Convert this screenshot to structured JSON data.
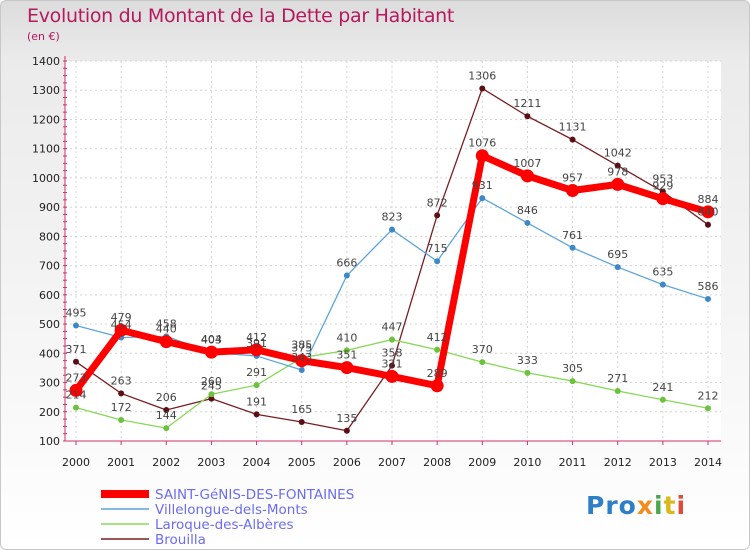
{
  "chart_data": {
    "type": "line",
    "title": "Evolution du Montant de la Dette par Habitant",
    "unit": "(en €)",
    "x": [
      "2000",
      "2001",
      "2002",
      "2003",
      "2004",
      "2005",
      "2006",
      "2007",
      "2008",
      "2009",
      "2010",
      "2011",
      "2012",
      "2013",
      "2014"
    ],
    "ylim": [
      100,
      1400
    ],
    "yticks": [
      100,
      200,
      300,
      400,
      500,
      600,
      700,
      800,
      900,
      1000,
      1100,
      1200,
      1300,
      1400
    ],
    "grid": true,
    "legend_position": "bottom-left",
    "series": [
      {
        "name": "Brouilla",
        "color": "#7a1e23",
        "values": [
          371,
          263,
          206,
          245,
          191,
          165,
          135,
          358,
          872,
          1306,
          1211,
          1131,
          1042,
          953,
          840
        ]
      },
      {
        "name": "Laroque-des-Albères",
        "color": "#88d858",
        "values": [
          214,
          172,
          144,
          260,
          291,
          385,
          410,
          447,
          412,
          370,
          333,
          305,
          271,
          241,
          212
        ]
      },
      {
        "name": "Villelongue-dels-Monts",
        "color": "#5ea5dc",
        "values": [
          495,
          454,
          458,
          403,
          391,
          343,
          666,
          823,
          715,
          931,
          846,
          761,
          695,
          635,
          586
        ]
      },
      {
        "name": "SAINT-GéNIS-DES-FONTAINES",
        "color": "#ff0000",
        "values": [
          273,
          479,
          440,
          404,
          412,
          375,
          351,
          321,
          289,
          1076,
          1007,
          957,
          978,
          929,
          884
        ]
      }
    ]
  },
  "logo": {
    "text": "Proxiti",
    "letter_colors": [
      "#2e7fc8",
      "#2e7fc8",
      "#2e7fc8",
      "#f28c1e",
      "#4ca64a",
      "#d8b81a",
      "#e04a3a"
    ]
  }
}
